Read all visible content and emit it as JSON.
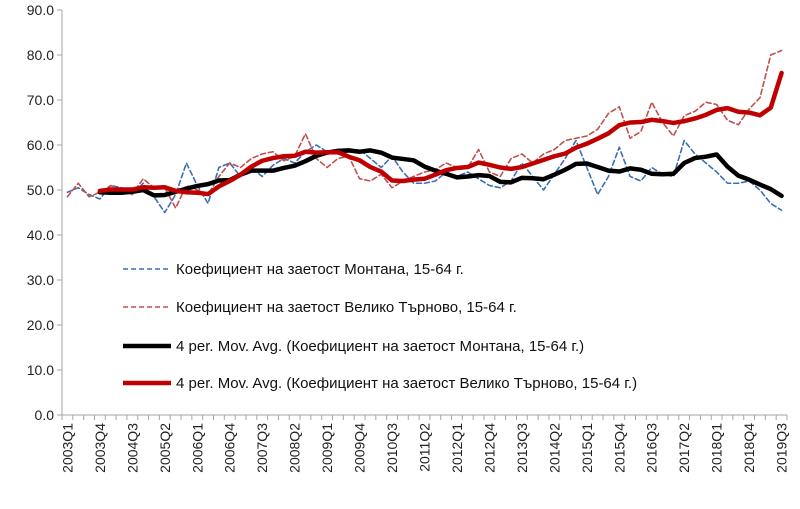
{
  "chart_data": {
    "type": "line",
    "title": "",
    "xlabel": "",
    "ylabel": "",
    "ylim": [
      0,
      90
    ],
    "yticks": [
      0,
      10,
      20,
      30,
      40,
      50,
      60,
      70,
      80,
      90
    ],
    "ytick_labels": [
      "0.0",
      "10.0",
      "20.0",
      "30.0",
      "40.0",
      "50.0",
      "60.0",
      "70.0",
      "80.0",
      "90.0"
    ],
    "x": [
      "2003Q1",
      "2003Q2",
      "2003Q3",
      "2003Q4",
      "2004Q1",
      "2004Q2",
      "2004Q3",
      "2004Q4",
      "2005Q1",
      "2005Q2",
      "2005Q3",
      "2005Q4",
      "2006Q1",
      "2006Q2",
      "2006Q3",
      "2006Q4",
      "2007Q1",
      "2007Q2",
      "2007Q3",
      "2007Q4",
      "2008Q1",
      "2008Q2",
      "2008Q3",
      "2008Q4",
      "2009Q1",
      "2009Q2",
      "2009Q3",
      "2009Q4",
      "2010Q1",
      "2010Q2",
      "2010Q3",
      "2010Q4",
      "2011Q1",
      "2011Q2",
      "2011Q3",
      "2011Q4",
      "2012Q1",
      "2012Q2",
      "2012Q3",
      "2012Q4",
      "2013Q1",
      "2013Q2",
      "2013Q3",
      "2013Q4",
      "2014Q1",
      "2014Q2",
      "2014Q3",
      "2014Q4",
      "2015Q1",
      "2015Q2",
      "2015Q3",
      "2015Q4",
      "2016Q1",
      "2016Q2",
      "2016Q3",
      "2016Q4",
      "2017Q1",
      "2017Q2",
      "2017Q3",
      "2017Q4",
      "2018Q1",
      "2018Q2",
      "2018Q3",
      "2018Q4",
      "2019Q1",
      "2019Q2",
      "2019Q3"
    ],
    "xtick_labels": [
      "2003Q1",
      "2003Q4",
      "2004Q3",
      "2005Q2",
      "2006Q1",
      "2006Q4",
      "2007Q3",
      "2008Q2",
      "2009Q1",
      "2009Q4",
      "2010Q3",
      "2011Q2",
      "2012Q1",
      "2012Q4",
      "2013Q3",
      "2014Q2",
      "2015Q1",
      "2015Q4",
      "2016Q3",
      "2017Q2",
      "2018Q1",
      "2018Q4",
      "2019Q3"
    ],
    "grid": false,
    "legend_position": "left-middle",
    "series": [
      {
        "name": "Коефициент на заетост Монтана, 15-64 г.",
        "color": "#3b6fb5",
        "style": "dashed",
        "values": [
          49.5,
          50.5,
          49.0,
          48.0,
          51.0,
          50.5,
          49.0,
          51.5,
          48.5,
          45.0,
          49.0,
          56.0,
          51.0,
          47.0,
          55.0,
          56.0,
          53.0,
          55.0,
          53.0,
          55.5,
          57.0,
          56.0,
          58.5,
          60.0,
          58.5,
          58.0,
          58.5,
          59.0,
          57.0,
          55.0,
          57.5,
          54.0,
          51.5,
          51.5,
          52.0,
          54.0,
          53.0,
          54.0,
          52.5,
          51.0,
          50.5,
          52.0,
          56.0,
          53.0,
          50.0,
          53.5,
          57.0,
          61.0,
          55.0,
          49.0,
          53.0,
          59.5,
          53.0,
          52.0,
          55.0,
          53.5,
          53.0,
          61.0,
          58.0,
          56.0,
          54.0,
          51.5,
          51.5,
          52.0,
          50.0,
          47.0,
          45.5
        ]
      },
      {
        "name": "Коефициент на заетост Велико Търново, 15-64 г.",
        "color": "#c0504d",
        "style": "dashed",
        "values": [
          48.5,
          51.5,
          48.5,
          49.5,
          51.0,
          50.0,
          49.0,
          52.5,
          50.5,
          50.5,
          46.0,
          51.0,
          50.0,
          49.0,
          53.0,
          56.0,
          55.0,
          57.0,
          58.0,
          58.5,
          56.5,
          57.5,
          62.5,
          57.0,
          55.0,
          57.0,
          57.5,
          52.5,
          52.0,
          53.5,
          50.5,
          52.0,
          53.0,
          54.0,
          54.5,
          56.0,
          55.0,
          55.0,
          59.0,
          54.0,
          53.0,
          57.0,
          58.0,
          56.0,
          58.0,
          59.0,
          61.0,
          61.5,
          62.0,
          63.5,
          67.0,
          68.5,
          61.5,
          63.0,
          69.5,
          65.0,
          62.0,
          66.5,
          67.5,
          69.5,
          69.0,
          65.5,
          64.5,
          68.0,
          70.5,
          80.0,
          81.0
        ]
      },
      {
        "name": "4 per. Mov. Avg. (Коефициент на заетост Монтана, 15-64 г.)",
        "color": "#000000",
        "style": "solid",
        "values": [
          null,
          null,
          null,
          49.5,
          49.4,
          49.4,
          49.6,
          50.0,
          48.8,
          48.9,
          49.6,
          50.3,
          50.9,
          51.3,
          52.1,
          52.2,
          53.4,
          54.3,
          54.3,
          54.3,
          54.9,
          55.4,
          56.4,
          57.6,
          58.3,
          58.7,
          58.8,
          58.5,
          58.8,
          58.3,
          57.2,
          56.9,
          56.6,
          55.2,
          54.3,
          53.6,
          52.8,
          53.0,
          53.3,
          53.1,
          51.8,
          51.7,
          52.7,
          52.6,
          52.4,
          53.4,
          54.5,
          55.8,
          55.9,
          55.1,
          54.3,
          54.1,
          54.8,
          54.5,
          53.6,
          53.5,
          53.6,
          56.0,
          57.1,
          57.4,
          57.9,
          55.2,
          53.2,
          52.3,
          51.2,
          50.2,
          48.7
        ]
      },
      {
        "name": "4 per. Mov. Avg. (Коефициент на заетост Велико Търново, 15-64 г.)",
        "color": "#c00000",
        "style": "solid",
        "values": [
          null,
          null,
          null,
          49.8,
          50.1,
          50.1,
          50.1,
          50.6,
          50.5,
          50.6,
          49.8,
          49.5,
          49.4,
          49.1,
          50.8,
          52.0,
          53.4,
          55.2,
          56.5,
          57.1,
          57.5,
          57.6,
          58.5,
          58.3,
          58.4,
          58.4,
          57.4,
          56.6,
          55.1,
          54.1,
          52.1,
          52.0,
          52.3,
          52.5,
          53.4,
          54.4,
          54.9,
          55.1,
          56.1,
          55.6,
          55.0,
          54.7,
          55.1,
          55.9,
          56.7,
          57.5,
          58.1,
          59.4,
          60.3,
          61.4,
          62.6,
          64.4,
          65.0,
          65.1,
          65.6,
          65.3,
          64.9,
          65.3,
          65.9,
          66.7,
          67.8,
          68.2,
          67.4,
          67.2,
          66.6,
          68.3,
          76.0
        ]
      }
    ]
  }
}
